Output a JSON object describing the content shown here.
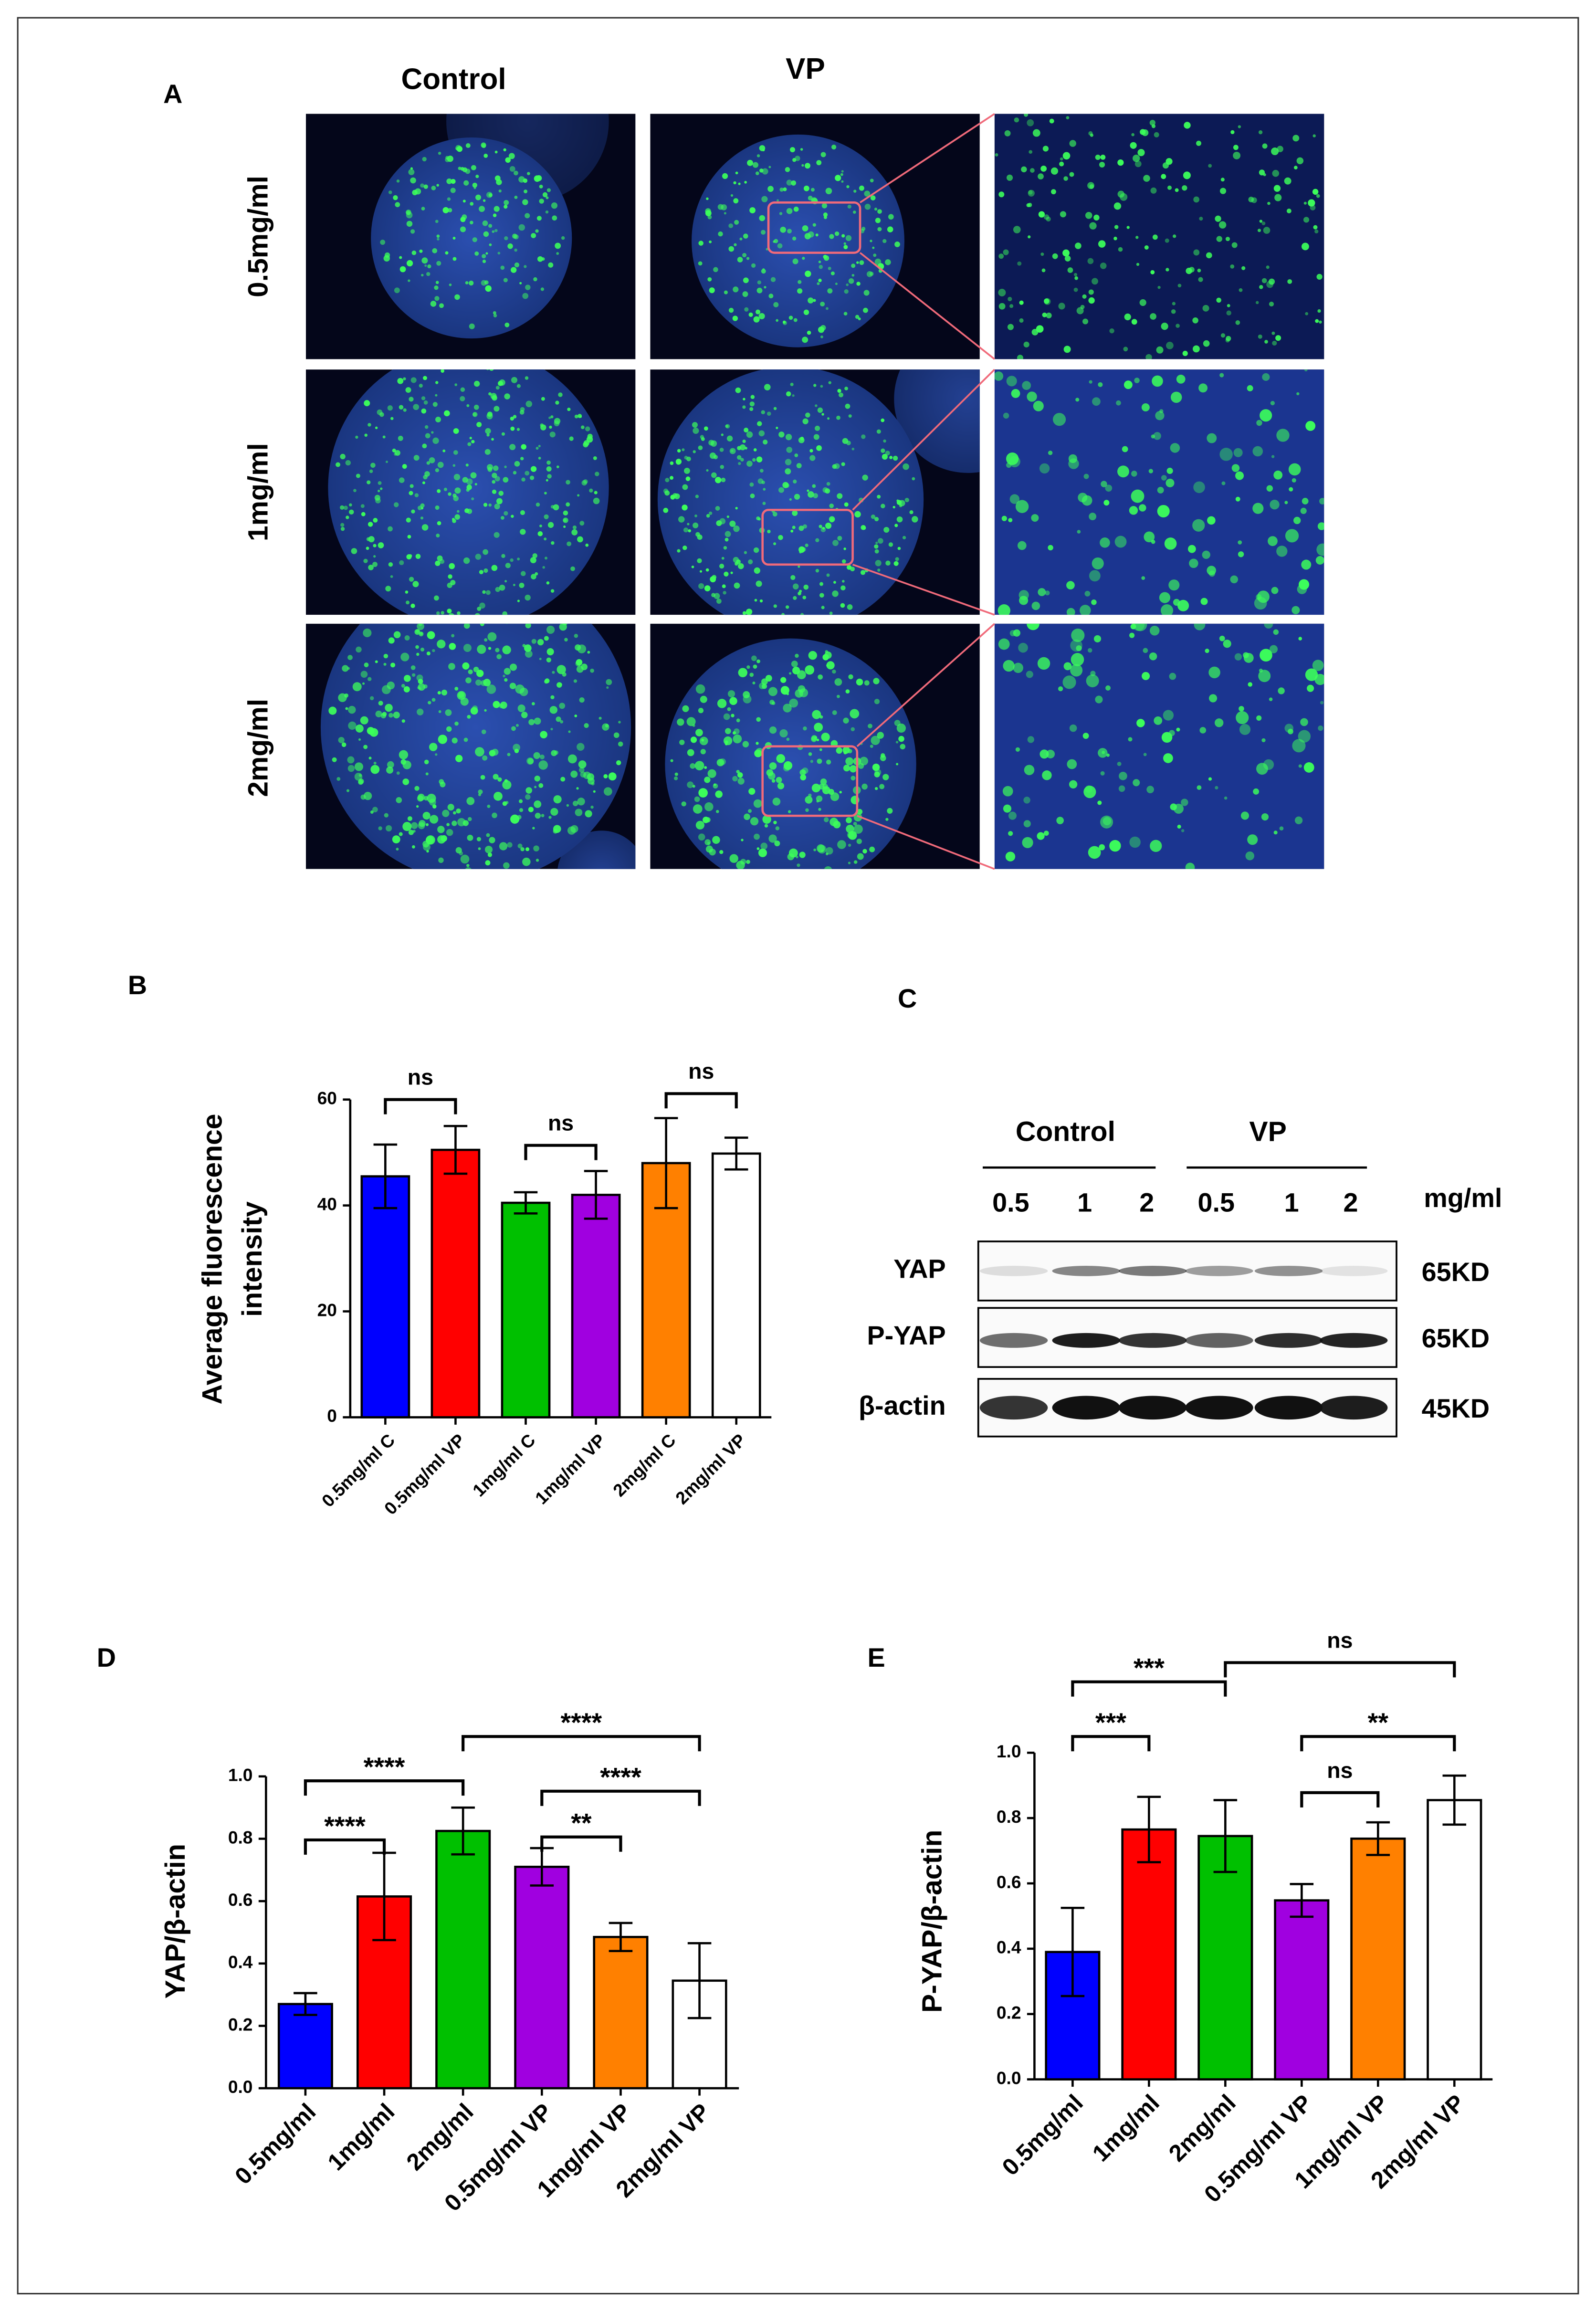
{
  "figure_labels": {
    "a": "A",
    "b": "B",
    "c": "C",
    "d": "D",
    "e": "E"
  },
  "panel_a": {
    "columns": [
      "Control",
      "VP"
    ],
    "rows": [
      "0.5mg/ml",
      "1mg/ml",
      "2mg/ml"
    ]
  },
  "panel_c": {
    "groups": [
      "Control",
      "VP"
    ],
    "lanes": [
      "0.5",
      "1",
      "2",
      "0.5",
      "1",
      "2"
    ],
    "unit": "mg/ml",
    "rows": [
      {
        "label": "YAP",
        "size": "65KD"
      },
      {
        "label": "P-YAP",
        "size": "65KD"
      },
      {
        "label": "β-actin",
        "size": "45KD"
      }
    ]
  },
  "chart_data": [
    {
      "type": "bar",
      "y_label": [
        "Average fluorescence",
        "intensity"
      ],
      "categories": [
        "0.5mg/ml C",
        "0.5mg/ml VP",
        "1mg/ml C",
        "1mg/ml VP",
        "2mg/ml C",
        "2mg/ml VP"
      ],
      "values": [
        45.5,
        50.5,
        40.5,
        42,
        48,
        49.8
      ],
      "errors": [
        6,
        4.5,
        2,
        4.5,
        8.5,
        3
      ],
      "colors": [
        "#0000ff",
        "#ff0000",
        "#00c000",
        "#a000e0",
        "#ff8000",
        "#ffffff"
      ],
      "ylim": [
        0,
        60
      ],
      "yticks": [
        0,
        20,
        40,
        60
      ],
      "brackets": [
        {
          "between": [
            0,
            1
          ],
          "label": "ns"
        },
        {
          "between": [
            2,
            3
          ],
          "label": "ns"
        },
        {
          "between": [
            4,
            5
          ],
          "label": "ns"
        }
      ]
    },
    {
      "type": "bar",
      "y_label": "YAP/β-actin",
      "categories": [
        "0.5mg/ml",
        "1mg/ml",
        "2mg/ml",
        "0.5mg/ml VP",
        "1mg/ml VP",
        "2mg/ml VP"
      ],
      "values": [
        0.27,
        0.615,
        0.825,
        0.71,
        0.485,
        0.345
      ],
      "errors": [
        0.035,
        0.14,
        0.075,
        0.06,
        0.045,
        0.12
      ],
      "colors": [
        "#0000ff",
        "#ff0000",
        "#00c000",
        "#a000e0",
        "#ff8000",
        "#ffffff"
      ],
      "ylim": [
        0,
        1
      ],
      "yticks": [
        {
          "value": 0,
          "label": "0.0"
        },
        0.2,
        0.4,
        0.6,
        0.8,
        {
          "value": 1,
          "label": "1.0"
        }
      ],
      "brackets": [
        {
          "between": [
            0,
            1
          ],
          "label": "****"
        },
        {
          "between": [
            0,
            2
          ],
          "label": "****"
        },
        {
          "between": [
            2,
            5
          ],
          "label": "****"
        },
        {
          "between": [
            3,
            4
          ],
          "label": "**"
        },
        {
          "between": [
            3,
            5
          ],
          "label": "****"
        }
      ]
    },
    {
      "type": "bar",
      "y_label": "P-YAP/β-actin",
      "categories": [
        "0.5mg/ml",
        "1mg/ml",
        "2mg/ml",
        "0.5mg/ml VP",
        "1mg/ml VP",
        "2mg/ml VP"
      ],
      "values": [
        0.39,
        0.765,
        0.745,
        0.548,
        0.737,
        0.855
      ],
      "errors": [
        0.135,
        0.1,
        0.11,
        0.05,
        0.05,
        0.075
      ],
      "colors": [
        "#0000ff",
        "#ff0000",
        "#00c000",
        "#a000e0",
        "#ff8000",
        "#ffffff"
      ],
      "ylim": [
        0,
        1
      ],
      "yticks": [
        {
          "value": 0,
          "label": "0.0"
        },
        0.2,
        0.4,
        0.6,
        0.8,
        {
          "value": 1,
          "label": "1.0"
        }
      ],
      "brackets": [
        {
          "between": [
            0,
            1
          ],
          "label": "***"
        },
        {
          "between": [
            0,
            2
          ],
          "label": "***"
        },
        {
          "between": [
            2,
            5
          ],
          "label": "ns"
        },
        {
          "between": [
            3,
            4
          ],
          "label": "ns"
        },
        {
          "between": [
            3,
            5
          ],
          "label": "**"
        }
      ]
    }
  ]
}
